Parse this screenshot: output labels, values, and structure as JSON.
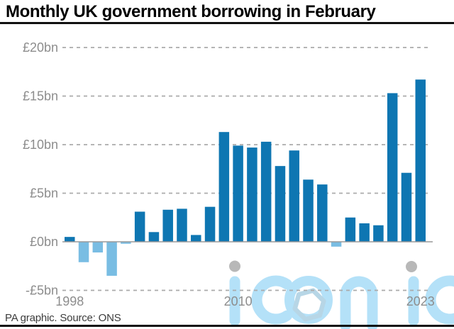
{
  "header": {
    "title": "Monthly UK government borrowing in February"
  },
  "footer": {
    "attribution": "PA graphic. Source: ONS"
  },
  "watermark": {
    "text": "iconic"
  },
  "colors": {
    "bar_positive": "#0e76b2",
    "bar_negative": "#79bde3",
    "gridline": "#ababab",
    "zero_line": "#999999",
    "axis_label": "#8d8d8d",
    "watermark": "#b4e1f8",
    "watermark_hexagon": "#b7d6e6",
    "watermark_dot": "#b8b8b8",
    "title_text": "#000000",
    "attribution_text": "#3c3c3c"
  },
  "chart_data": {
    "type": "bar",
    "title": "Monthly UK government borrowing in February",
    "unit": "£bn",
    "ylabel": "",
    "xlabel": "",
    "ylim": [
      -5,
      20
    ],
    "grid": "dashed horizontal gridlines, solid zero line",
    "legend": "none",
    "source": "ONS",
    "x": [
      1998,
      1999,
      2000,
      2001,
      2002,
      2003,
      2004,
      2005,
      2006,
      2007,
      2008,
      2009,
      2010,
      2011,
      2012,
      2013,
      2014,
      2015,
      2016,
      2017,
      2018,
      2019,
      2020,
      2021,
      2022,
      2023
    ],
    "values": [
      0.5,
      -2.1,
      -1.1,
      -3.5,
      -0.2,
      3.1,
      1.0,
      3.3,
      3.4,
      0.7,
      3.6,
      11.3,
      9.9,
      9.7,
      10.3,
      7.8,
      9.4,
      6.4,
      5.9,
      -0.5,
      2.5,
      1.9,
      1.7,
      15.3,
      7.1,
      16.7
    ],
    "yticks": [
      {
        "value": 20,
        "label": "£20bn"
      },
      {
        "value": 15,
        "label": "£15bn"
      },
      {
        "value": 10,
        "label": "£10bn"
      },
      {
        "value": 5,
        "label": "£5bn"
      },
      {
        "value": 0,
        "label": "£0bn"
      },
      {
        "value": -5,
        "label": "-£5bn"
      }
    ],
    "xtick_labels": [
      {
        "year": 1998,
        "label": "1998"
      },
      {
        "year": 2010,
        "label": "2010"
      },
      {
        "year": 2023,
        "label": "2023"
      }
    ]
  }
}
